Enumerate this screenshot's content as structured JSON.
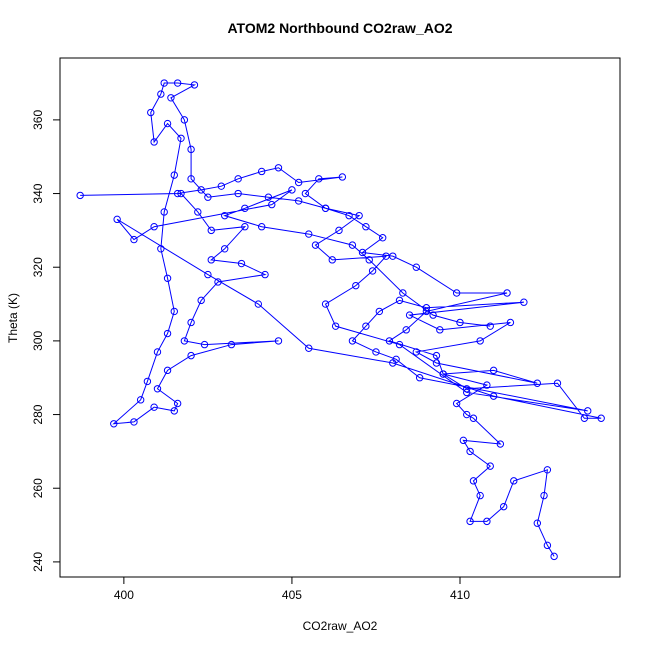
{
  "chart_data": {
    "type": "line",
    "title": "ATOM2 Northbound CO2raw_AO2",
    "xlabel": "CO2raw_AO2",
    "ylabel": "Theta (K)",
    "color": "#0000ff",
    "markers": true,
    "x": [
      412.8,
      412.6,
      412.3,
      412.5,
      412.6,
      411.6,
      411.3,
      410.8,
      410.3,
      410.6,
      410.4,
      410.9,
      410.3,
      410.1,
      411.2,
      410.4,
      410.2,
      409.9,
      410.8,
      409.5,
      411.0,
      412.3,
      409.3,
      408.7,
      410.6,
      411.5,
      409.4,
      408.5,
      411.9,
      409.0,
      408.2,
      407.6,
      407.2,
      406.8,
      407.5,
      408.1,
      408.8,
      413.8,
      410.2,
      408.2,
      406.3,
      406.0,
      406.9,
      407.4,
      407.8,
      406.2,
      405.7,
      406.4,
      407.0,
      406.0,
      405.4,
      405.8,
      406.5,
      405.2,
      404.6,
      404.1,
      403.4,
      402.9,
      402.3,
      401.6,
      398.7,
      401.7,
      402.2,
      402.6,
      403.6,
      403.0,
      402.6,
      403.5,
      404.2,
      402.8,
      402.3,
      402.0,
      401.8,
      402.4,
      404.6,
      403.2,
      402.0,
      401.3,
      401.0,
      401.6,
      401.5,
      400.9,
      400.3,
      399.7,
      400.5,
      400.7,
      401.0,
      401.3,
      401.5,
      401.3,
      401.1,
      401.2,
      401.5,
      401.7,
      401.3,
      400.9,
      400.8,
      401.1,
      401.2,
      401.6,
      402.1,
      401.4,
      401.8,
      402.0,
      402.0,
      402.5,
      403.4,
      404.3,
      405.2,
      406.0,
      406.7,
      407.2,
      407.7,
      407.1,
      408.0,
      408.7,
      409.9,
      411.4,
      409.0,
      408.4,
      407.9,
      409.3,
      409.5,
      410.2,
      412.9,
      413.7,
      414.2,
      411.0,
      408.0,
      405.5,
      404.0,
      402.5,
      399.8,
      400.3,
      400.9,
      404.4,
      405.0,
      403.6,
      403.0,
      404.1,
      405.5,
      406.8,
      407.3,
      408.3,
      409.2,
      410.0,
      410.9
    ],
    "values": [
      241.5,
      244.5,
      250.5,
      258,
      265,
      262,
      255,
      251,
      251,
      258,
      262,
      266,
      270,
      273,
      272,
      279,
      280,
      283,
      288,
      291,
      292,
      288.5,
      294,
      297,
      300,
      305,
      303,
      307,
      310.5,
      309,
      311,
      308,
      304,
      300,
      297,
      295,
      290,
      281,
      286,
      299,
      304,
      310,
      315,
      319,
      323,
      322,
      326,
      330,
      334,
      336,
      340,
      344,
      344.5,
      343,
      347,
      346,
      344,
      342,
      341,
      340,
      339.5,
      340,
      335,
      330,
      331,
      325,
      322,
      321,
      318,
      316,
      311,
      305,
      300,
      299,
      300,
      299,
      296,
      292,
      287,
      283,
      281,
      282,
      278,
      277.5,
      284,
      289,
      297,
      302,
      308,
      317,
      325,
      335,
      345,
      355,
      359,
      354,
      362,
      367,
      370,
      370,
      369.5,
      366,
      360,
      352,
      344,
      339,
      340,
      339,
      338,
      336,
      334,
      331,
      328,
      324,
      323,
      320,
      313,
      313,
      308,
      303,
      300,
      296,
      291,
      287,
      288.5,
      279,
      279,
      285,
      294,
      298,
      310,
      318,
      333,
      327.5,
      331,
      337,
      341,
      336,
      334,
      331,
      329,
      326,
      322,
      313,
      307,
      305,
      304
    ],
    "xlim": [
      398.1,
      414.76
    ],
    "ylim": [
      235.9,
      376.8
    ],
    "xticks": [
      400,
      405,
      410
    ],
    "yticks": [
      240,
      260,
      280,
      300,
      320,
      340,
      360
    ]
  }
}
